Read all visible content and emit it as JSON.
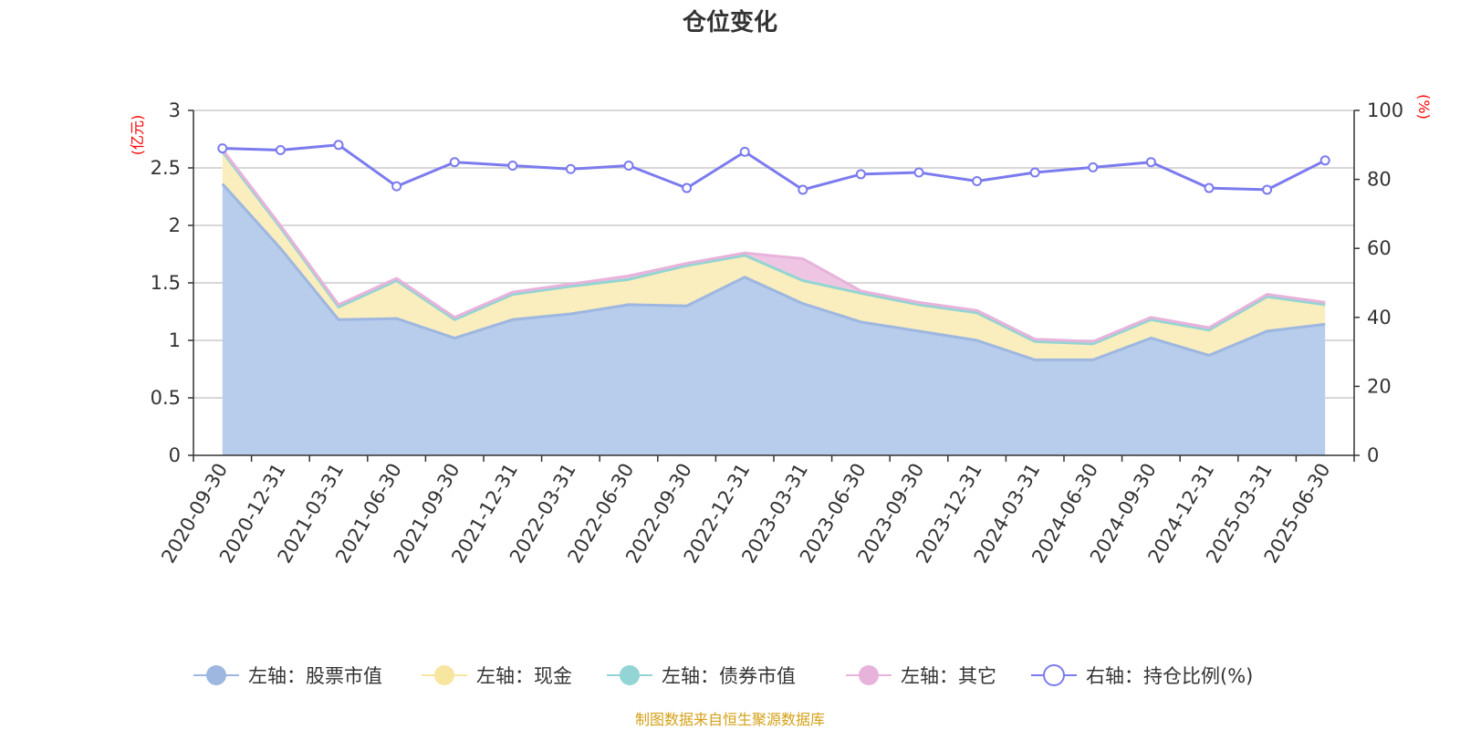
{
  "chart_data": {
    "type": "area",
    "title": "仓位变化",
    "left_unit": "(亿元)",
    "right_unit": "(%)",
    "left_ylim": [
      0,
      3
    ],
    "left_ticks": [
      "0",
      "0.5",
      "1",
      "1.5",
      "2",
      "2.5",
      "3"
    ],
    "right_ylim": [
      0,
      100
    ],
    "right_ticks": [
      "0",
      "20",
      "40",
      "60",
      "80",
      "100"
    ],
    "categories": [
      "2020-09-30",
      "2020-12-31",
      "2021-03-31",
      "2021-06-30",
      "2021-09-30",
      "2021-12-31",
      "2022-03-31",
      "2022-06-30",
      "2022-09-30",
      "2022-12-31",
      "2023-03-31",
      "2023-06-30",
      "2023-09-30",
      "2023-12-31",
      "2024-03-31",
      "2024-06-30",
      "2024-09-30",
      "2024-12-31",
      "2025-03-31",
      "2025-06-30"
    ],
    "series": [
      {
        "name": "左轴：股票市值",
        "axis": "left",
        "stack": true,
        "color": "#9db7e0",
        "fill": "#b8cceb",
        "values": [
          2.36,
          1.8,
          1.18,
          1.19,
          1.02,
          1.18,
          1.23,
          1.31,
          1.3,
          1.55,
          1.32,
          1.16,
          1.08,
          1.0,
          0.83,
          0.83,
          1.02,
          0.87,
          1.08,
          1.14
        ]
      },
      {
        "name": "左轴：现金",
        "axis": "left",
        "stack": true,
        "color": "#f7e6a0",
        "fill": "#faedbe",
        "values": [
          0.28,
          0.18,
          0.11,
          0.33,
          0.16,
          0.22,
          0.24,
          0.22,
          0.35,
          0.19,
          0.2,
          0.25,
          0.23,
          0.24,
          0.16,
          0.14,
          0.16,
          0.22,
          0.3,
          0.17
        ]
      },
      {
        "name": "左轴：债券市值",
        "axis": "left",
        "stack": true,
        "color": "#93d4d4",
        "fill": "#c4e8e8",
        "values": [
          0,
          0,
          0,
          0,
          0,
          0,
          0,
          0,
          0,
          0,
          0,
          0,
          0,
          0,
          0,
          0,
          0,
          0,
          0,
          0
        ]
      },
      {
        "name": "左轴：其它",
        "axis": "left",
        "stack": true,
        "color": "#e8b3db",
        "fill": "#eec6e4",
        "values": [
          0.02,
          0.02,
          0.02,
          0.02,
          0.02,
          0.02,
          0.02,
          0.03,
          0.02,
          0.02,
          0.19,
          0.02,
          0.02,
          0.02,
          0.02,
          0.02,
          0.02,
          0.02,
          0.02,
          0.02
        ]
      },
      {
        "name": "右轴：持仓比例(%)",
        "axis": "right",
        "stack": false,
        "color": "#7b7bef",
        "values": [
          89,
          88.5,
          90,
          78,
          85,
          84,
          83,
          84,
          77.5,
          88,
          77,
          81.5,
          82,
          79.5,
          82,
          83.5,
          85,
          77.5,
          77,
          85.5
        ]
      }
    ]
  },
  "source_note": "制图数据来自恒生聚源数据库"
}
